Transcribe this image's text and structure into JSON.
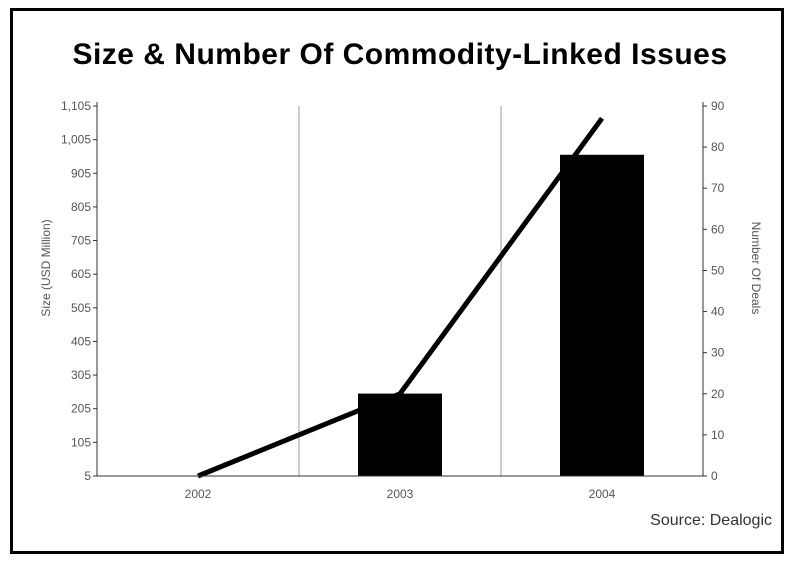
{
  "chart_data": {
    "type": "bar",
    "title": "Size & Number Of Commodity-Linked Issues",
    "categories": [
      "2002",
      "2003",
      "2004"
    ],
    "left_axis": {
      "label": "Size (USD Million)",
      "ticks": [
        "5",
        "105",
        "205",
        "305",
        "405",
        "505",
        "605",
        "705",
        "805",
        "905",
        "1,005",
        "1,105"
      ],
      "ylim": [
        5,
        1105
      ]
    },
    "right_axis": {
      "label": "Number Of Deals",
      "ticks": [
        "0",
        "10",
        "20",
        "30",
        "40",
        "50",
        "60",
        "70",
        "80",
        "90"
      ],
      "ylim": [
        0,
        90
      ]
    },
    "series": [
      {
        "type": "bar",
        "axis": "left",
        "values": [
          5,
          250,
          960
        ]
      },
      {
        "type": "line",
        "axis": "right",
        "values": [
          0,
          20,
          87
        ]
      }
    ],
    "source": "Source: Dealogic",
    "colors": {
      "bar": "#000000",
      "line": "#000000",
      "grid": "#999999",
      "text": "#555555"
    }
  }
}
